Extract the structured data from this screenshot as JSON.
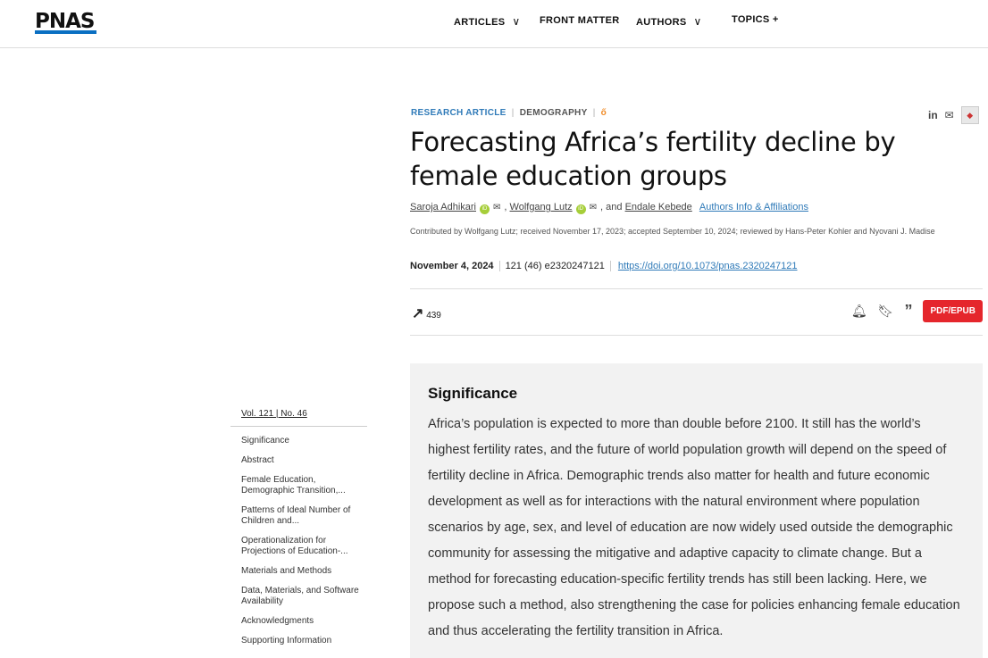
{
  "header": {
    "logo": "PNAS",
    "nav": [
      "ARTICLES",
      "FRONT MATTER",
      "AUTHORS",
      "TOPICS"
    ]
  },
  "article": {
    "type": "RESEARCH ARTICLE",
    "section": "DEMOGRAPHY",
    "title": "Forecasting Africa’s fertility decline by female education groups",
    "authors": [
      "Saroja Adhikari",
      "Wolfgang Lutz",
      "Endale Kebede"
    ],
    "and": ", and",
    "affiliations_link": "Authors Info & Affiliations",
    "contributed": "Contributed by Wolfgang Lutz; received November 17, 2023; accepted September 10, 2024; reviewed by Hans-Peter Kohler and Nyovani J. Madise",
    "date": "November 4, 2024",
    "citation": "121 (46) e2320247121",
    "doi": "https://doi.org/10.1073/pnas.2320247121",
    "metric_count": "439",
    "pdf_label": "PDF/EPUB"
  },
  "toc": {
    "volume": "Vol. 121 | No. 46",
    "items": [
      "Significance",
      "Abstract",
      "Female Education, Demographic Transition,...",
      "Patterns of Ideal Number of Children and...",
      "Operationalization for Projections of Education-...",
      "Materials and Methods",
      "Data, Materials, and Software Availability",
      "Acknowledgments",
      "Supporting Information"
    ]
  },
  "significance": {
    "heading": "Significance",
    "text": "Africa’s population is expected to more than double before 2100. It still has the world’s highest fertility rates, and the future of world population growth will depend on the speed of fertility decline in Africa. Demographic trends also matter for health and future economic development as well as for interactions with the natural environment where population scenarios by age, sex, and level of education are now widely used outside the demographic community for assessing the mitigative and adaptive capacity to climate change. But a method for forecasting education-specific fertility trends has still been lacking. Here, we propose such a method, also strengthening the case for policies enhancing female education and thus accelerating the fertility transition in Africa."
  },
  "colors": {
    "accent": "#2f7ab8",
    "pdf": "#e5262c",
    "brand_bar": "#0a6fc2"
  }
}
